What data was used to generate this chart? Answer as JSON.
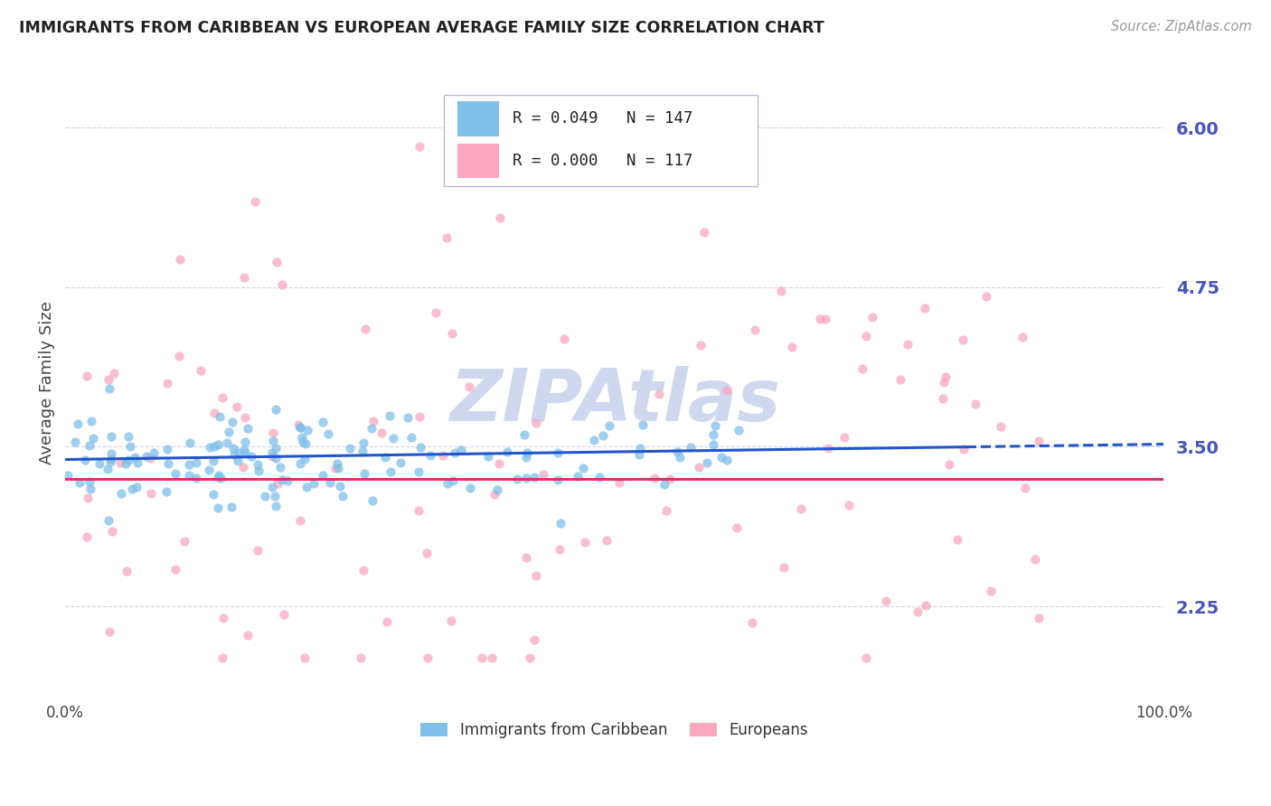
{
  "title": "IMMIGRANTS FROM CARIBBEAN VS EUROPEAN AVERAGE FAMILY SIZE CORRELATION CHART",
  "source": "Source: ZipAtlas.com",
  "ylabel": "Average Family Size",
  "xlim": [
    0.0,
    1.0
  ],
  "ylim": [
    1.55,
    6.45
  ],
  "yticks": [
    2.25,
    3.5,
    4.75,
    6.0
  ],
  "ytick_labels": [
    "2.25",
    "3.50",
    "4.75",
    "6.00"
  ],
  "xticks": [
    0.0,
    0.25,
    0.5,
    0.75,
    1.0
  ],
  "xticklabels": [
    "0.0%",
    "",
    "",
    "",
    "100.0%"
  ],
  "caribbean_color": "#7fbfea",
  "european_color": "#f9a8c0",
  "caribbean_R": 0.049,
  "caribbean_N": 147,
  "european_R": 0.0,
  "european_N": 117,
  "background_color": "#ffffff",
  "grid_color": "#c8c8e0",
  "axis_color": "#4455bb",
  "watermark": "ZIPAtlas",
  "watermark_color": "#d0d8f0",
  "trend_blue": "#2255cc",
  "trend_pink": "#dd3366",
  "legend_label_caribbean": "Immigrants from Caribbean",
  "legend_label_european": "Europeans"
}
